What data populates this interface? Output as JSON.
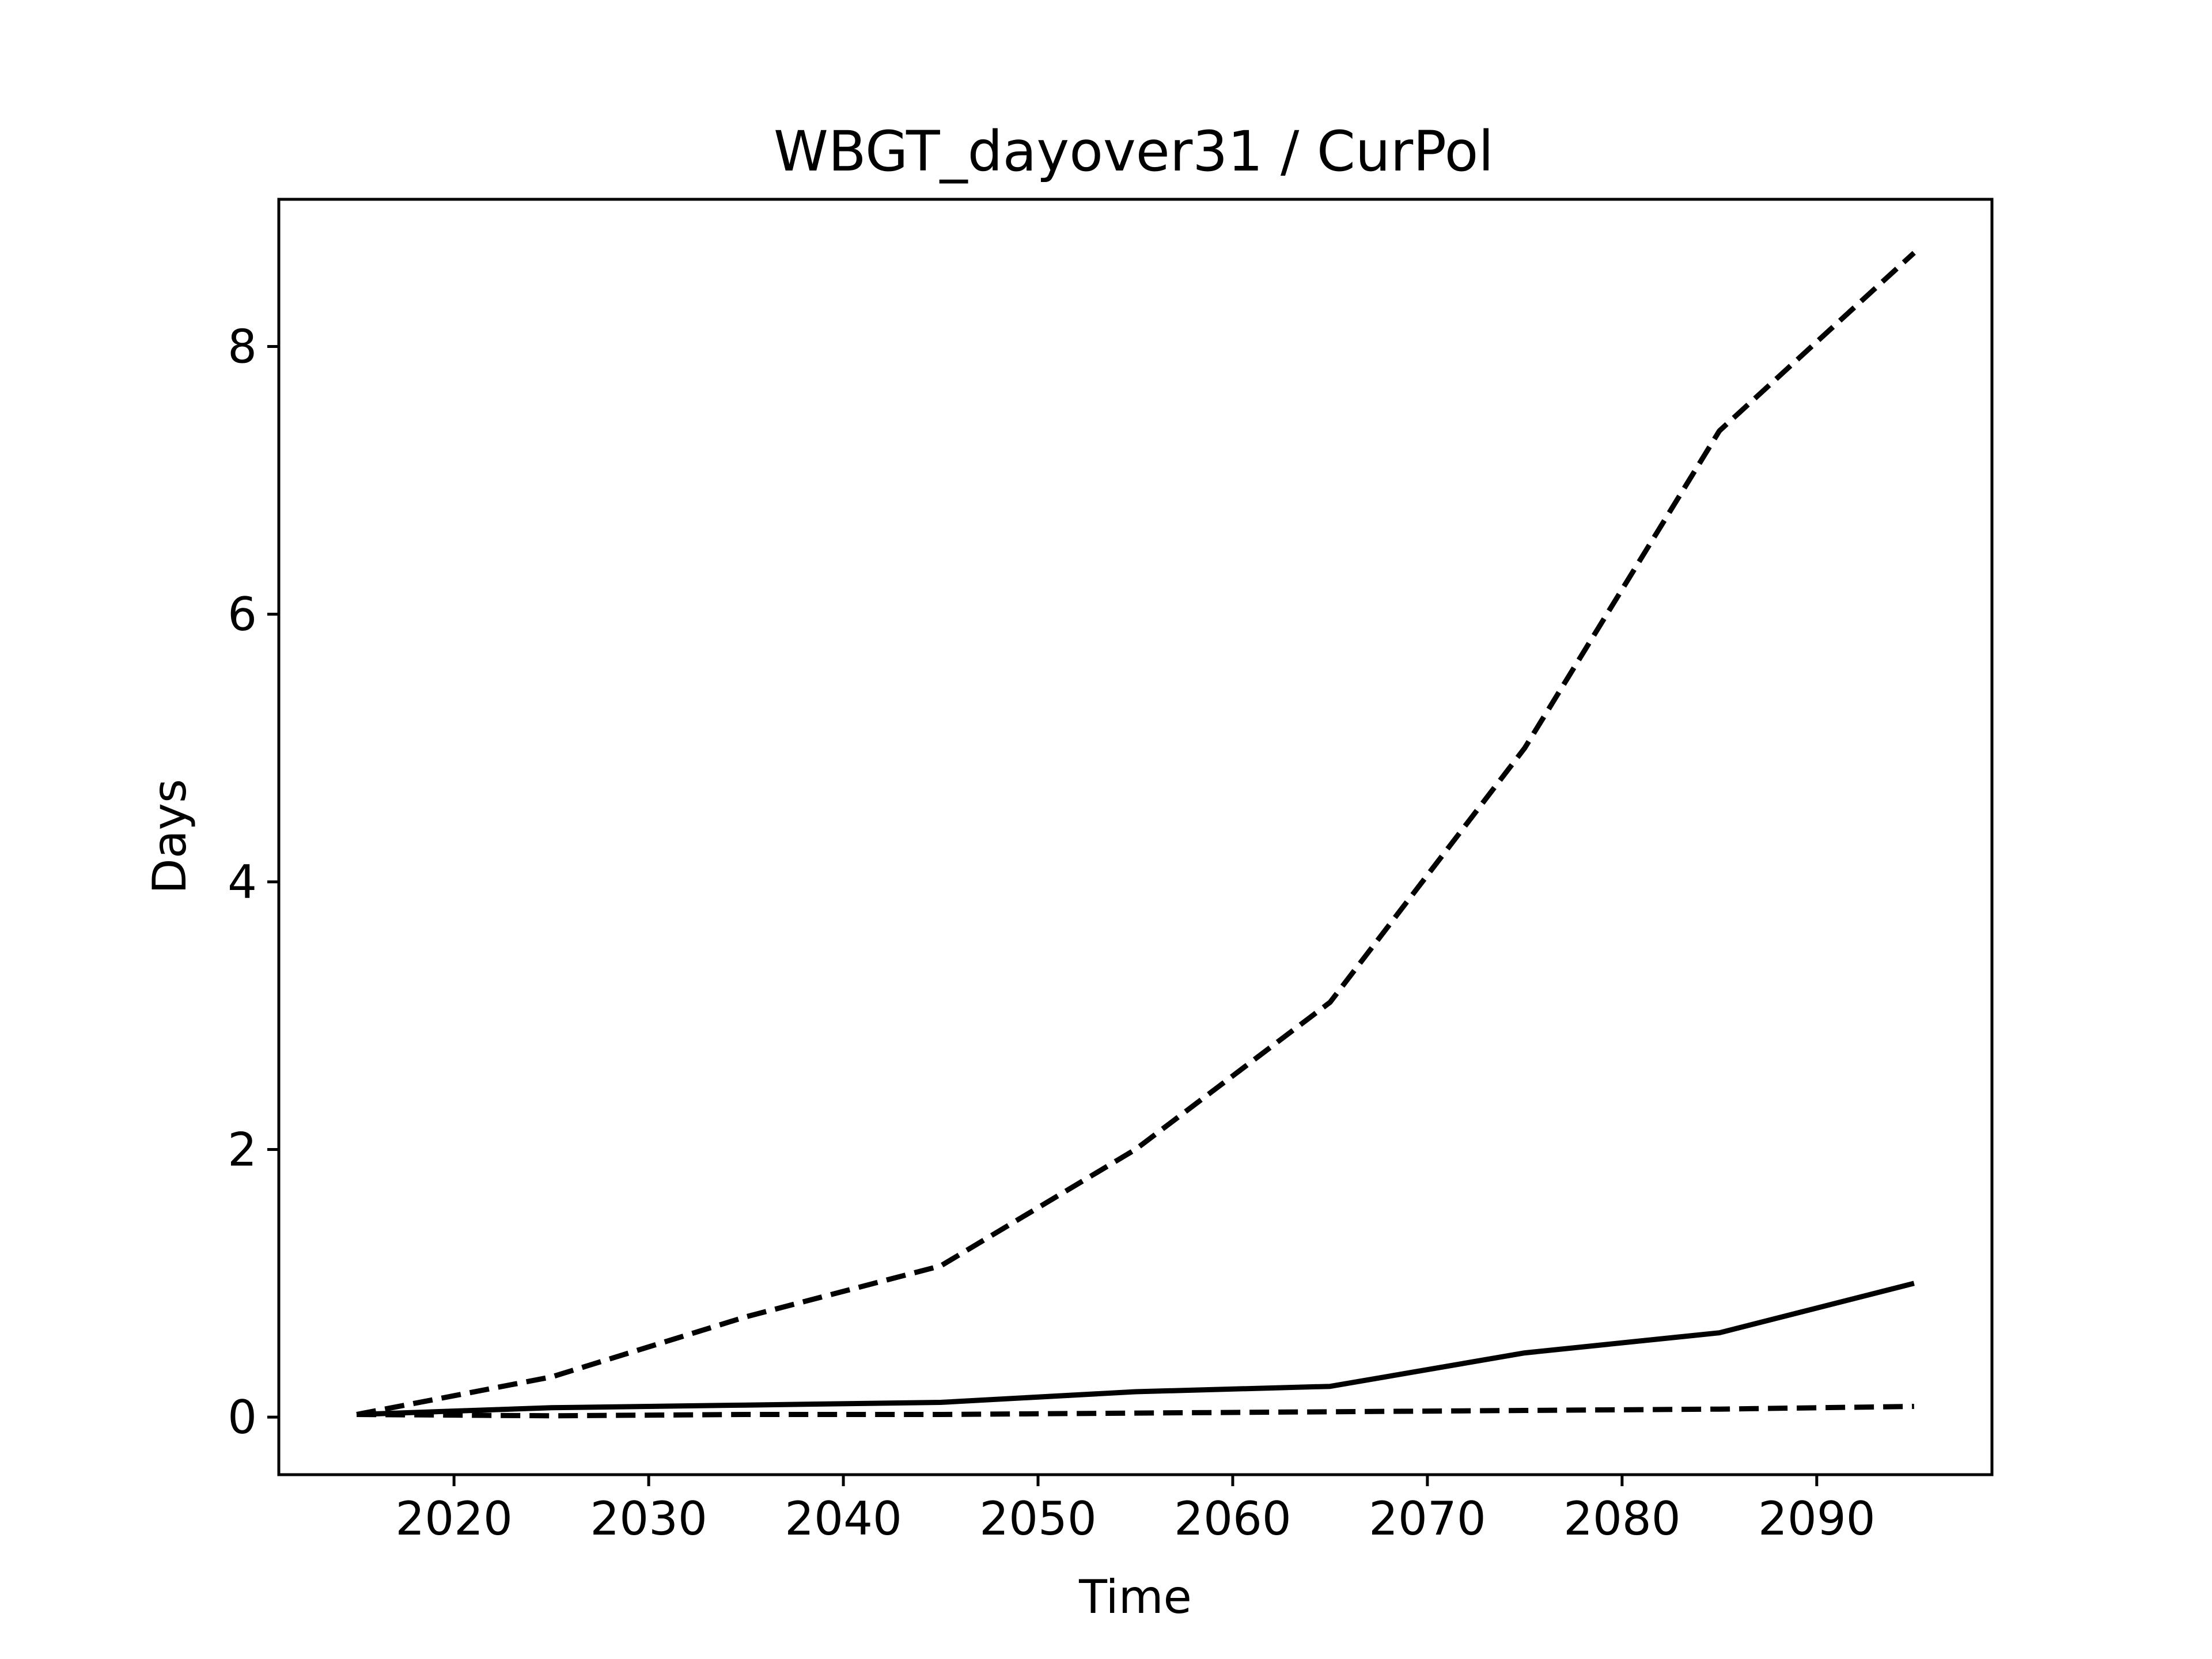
{
  "chart_data": {
    "type": "line",
    "title": "WBGT_dayover31 / CurPol",
    "xlabel": "Time",
    "ylabel": "Days",
    "xlim": [
      2011,
      2099
    ],
    "ylim": [
      -0.43,
      9.1
    ],
    "xticks": [
      2020,
      2030,
      2040,
      2050,
      2060,
      2070,
      2080,
      2090
    ],
    "yticks": [
      0,
      2,
      4,
      6,
      8
    ],
    "x": [
      2015,
      2025,
      2035,
      2045,
      2055,
      2065,
      2075,
      2085,
      2095
    ],
    "grid": false,
    "legend": "none",
    "series": [
      {
        "style": "dashed",
        "color": "#000000",
        "values": [
          0.02,
          0.3,
          0.75,
          1.13,
          2.0,
          3.1,
          5.0,
          7.37,
          8.7
        ]
      },
      {
        "style": "solid",
        "color": "#000000",
        "values": [
          0.02,
          0.07,
          0.09,
          0.11,
          0.19,
          0.23,
          0.48,
          0.63,
          1.0
        ]
      },
      {
        "style": "dashed",
        "color": "#000000",
        "values": [
          0.02,
          0.01,
          0.02,
          0.02,
          0.03,
          0.04,
          0.05,
          0.06,
          0.08
        ]
      }
    ]
  }
}
